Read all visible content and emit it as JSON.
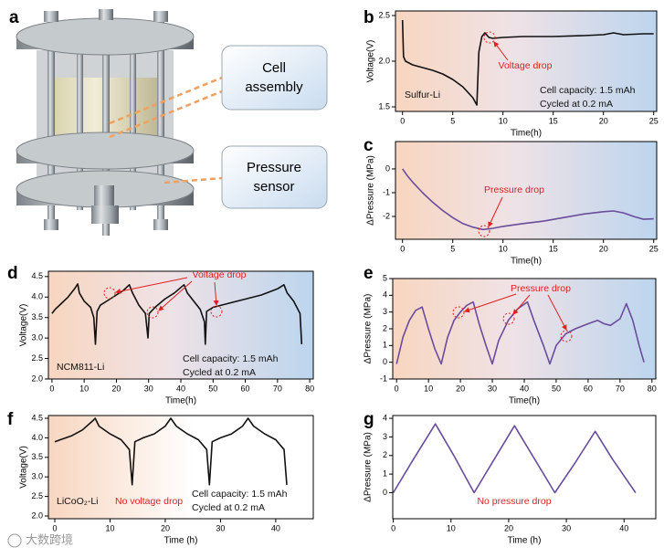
{
  "panel_labels": [
    "a",
    "b",
    "c",
    "d",
    "e",
    "f",
    "g"
  ],
  "illustration": {
    "cell_box": [
      "Cell",
      "assembly"
    ],
    "sensor_box": [
      "Pressure",
      "sensor"
    ]
  },
  "watermark": "大数跨境",
  "chart_data": [
    {
      "type": "line",
      "x_label": "Time(h)",
      "y_label": "Voltage(V)",
      "x": [
        0,
        0.1,
        0.3,
        1,
        2,
        3,
        4,
        5,
        6,
        7,
        7.4,
        7.6,
        7.9,
        8.2,
        8.6,
        9,
        10,
        12,
        15,
        18,
        20,
        21,
        22,
        24,
        25
      ],
      "series": [
        {
          "color": "#111111",
          "values": [
            2.45,
            2.05,
            2.0,
            1.96,
            1.93,
            1.9,
            1.86,
            1.8,
            1.72,
            1.6,
            1.52,
            2.1,
            2.27,
            2.31,
            2.26,
            2.25,
            2.26,
            2.27,
            2.27,
            2.28,
            2.29,
            2.31,
            2.29,
            2.3,
            2.3
          ]
        }
      ],
      "xlim": [
        -0.7,
        25.3
      ],
      "ylim": [
        1.45,
        2.55
      ],
      "xticks": [
        0,
        5,
        10,
        15,
        20,
        25
      ],
      "yticks": [
        1.5,
        {
          "value": 2,
          "label": "2.0"
        },
        2.5
      ],
      "annotations": [
        "Voltage drop",
        "Sulfur-Li",
        "Cell capacity: 1.5 mAh",
        "Cycled at 0.2 mA"
      ]
    },
    {
      "type": "line",
      "x_label": "Time(h)",
      "y_label": "ΔPressure (MPa)",
      "x": [
        0,
        0.5,
        1,
        2,
        3,
        4,
        5,
        6,
        7,
        8,
        9,
        10,
        12,
        14,
        16,
        18,
        20,
        21,
        22,
        23,
        24,
        25
      ],
      "series": [
        {
          "color": "#6a4c9c",
          "values": [
            0,
            -0.3,
            -0.55,
            -1,
            -1.4,
            -1.75,
            -2.05,
            -2.3,
            -2.45,
            -2.55,
            -2.5,
            -2.42,
            -2.3,
            -2.2,
            -2.05,
            -1.9,
            -1.8,
            -1.77,
            -1.85,
            -2,
            -2.12,
            -2.1
          ]
        }
      ],
      "xlim": [
        -0.7,
        25.3
      ],
      "ylim": [
        -2.96,
        1.15
      ],
      "xticks": [
        0,
        5,
        10,
        15,
        20,
        25
      ],
      "yticks": [
        -2,
        -1,
        0
      ],
      "annotations": [
        "Pressure drop"
      ]
    },
    {
      "type": "line",
      "x_label": "Time(h)",
      "y_label": "Voltage(V)",
      "x": [
        0,
        1,
        3,
        5,
        7,
        8,
        8.5,
        10,
        12,
        13,
        13.5,
        14,
        15,
        18,
        20,
        22,
        24,
        25,
        27,
        29,
        29.8,
        30.2,
        32,
        35,
        38,
        41,
        42,
        44,
        46,
        47.3,
        47.6,
        48,
        50,
        55,
        60,
        65,
        70,
        72,
        73,
        75,
        77,
        77.5
      ],
      "series": [
        {
          "color": "#111111",
          "values": [
            3.6,
            3.7,
            3.85,
            4.0,
            4.2,
            4.32,
            4.1,
            3.9,
            3.75,
            3.5,
            2.85,
            3.65,
            3.8,
            3.95,
            4.05,
            4.15,
            4.3,
            4.1,
            3.8,
            3.6,
            3.0,
            3.6,
            3.75,
            3.95,
            4.1,
            4.3,
            4.1,
            3.9,
            3.7,
            3.4,
            2.85,
            3.65,
            3.75,
            3.85,
            3.95,
            4.05,
            4.2,
            4.3,
            4.1,
            3.9,
            3.6,
            2.85
          ]
        }
      ],
      "xlim": [
        -1.1,
        81.1
      ],
      "ylim": [
        2.0,
        4.63
      ],
      "xticks": [
        0,
        10,
        20,
        30,
        40,
        50,
        60,
        70,
        80
      ],
      "yticks": [
        {
          "value": 2,
          "label": "2.0"
        },
        2.5,
        {
          "value": 3,
          "label": "3.0"
        },
        3.5,
        {
          "value": 4,
          "label": "4.0"
        },
        4.5
      ],
      "annotations": [
        "Voltage drop",
        "NCM811-Li",
        "Cell capacity: 1.5 mAh",
        "Cycled at 0.2 mA"
      ]
    },
    {
      "type": "line",
      "x_label": "Time(h)",
      "y_label": "ΔPressure (MPa)",
      "x": [
        0,
        2,
        4,
        6,
        8,
        10,
        12,
        14,
        16,
        18,
        20,
        22,
        24,
        26,
        28,
        30,
        32,
        35,
        38,
        41,
        43,
        46,
        48,
        50,
        53,
        56,
        60,
        63,
        65,
        67,
        70,
        72,
        74,
        76,
        77.5
      ],
      "series": [
        {
          "color": "#6a4c9c",
          "values": [
            -0.1,
            1.5,
            2.5,
            3.1,
            3.3,
            2,
            0.8,
            -0.1,
            1.5,
            2.5,
            3,
            3.4,
            3.6,
            2.2,
            1,
            -0.1,
            1.3,
            2.5,
            3.2,
            3.6,
            2.5,
            1,
            -0.1,
            1,
            1.7,
            2,
            2.3,
            2.5,
            2.3,
            2.2,
            2.6,
            3.5,
            2.5,
            1,
            0
          ]
        }
      ],
      "xlim": [
        -1.2,
        81.2
      ],
      "ylim": [
        -1,
        5
      ],
      "xticks": [
        0,
        10,
        20,
        30,
        40,
        50,
        60,
        70,
        80
      ],
      "yticks": [
        -1,
        0,
        1,
        2,
        3,
        4,
        5
      ],
      "annotations": [
        "Pressure drop"
      ]
    },
    {
      "type": "line",
      "x_label": "Time (h)",
      "y_label": "Voltage(V)",
      "x": [
        0,
        1,
        3,
        5,
        7,
        7.3,
        8,
        10,
        12,
        13.5,
        14,
        14.5,
        16,
        18,
        20,
        21,
        22,
        24,
        26,
        27.5,
        28,
        28.5,
        30,
        32,
        34,
        35,
        36,
        38,
        40,
        41.5,
        42
      ],
      "series": [
        {
          "color": "#111111",
          "values": [
            3.9,
            3.95,
            4.05,
            4.2,
            4.45,
            4.5,
            4.3,
            4.1,
            3.95,
            3.7,
            2.8,
            3.9,
            4.0,
            4.1,
            4.3,
            4.5,
            4.3,
            4.1,
            3.95,
            3.7,
            2.8,
            3.9,
            4.0,
            4.1,
            4.3,
            4.5,
            4.3,
            4.1,
            3.95,
            3.7,
            2.8
          ]
        }
      ],
      "xlim": [
        -1.16,
        46.8
      ],
      "ylim": [
        1.93,
        4.57
      ],
      "xticks": [
        0,
        10,
        20,
        30,
        40
      ],
      "yticks": [
        {
          "value": 2,
          "label": "2.0"
        },
        2.5,
        {
          "value": 3,
          "label": "3.0"
        },
        3.5,
        {
          "value": 4,
          "label": "4.0"
        },
        4.5
      ],
      "annotations": [
        "LiCoO₂-Li",
        "No voltage drop",
        "Cell capacity: 1.5 mAh",
        "Cycled at 0.2 mA"
      ]
    },
    {
      "type": "line",
      "x_label": "Time (h)",
      "y_label": "ΔPressure (MPa)",
      "x": [
        0,
        3.5,
        7.3,
        10.5,
        14,
        17.5,
        21,
        24.5,
        28,
        31.5,
        35,
        38,
        42
      ],
      "series": [
        {
          "color": "#6a4c9c",
          "values": [
            0,
            1.8,
            3.7,
            2,
            0,
            1.8,
            3.6,
            1.8,
            0,
            1.6,
            3.3,
            1.8,
            0
          ]
        }
      ],
      "xlim": [
        -0.1,
        45.5
      ],
      "ylim": [
        -1.4,
        4.15
      ],
      "xticks": [
        0,
        10,
        20,
        30,
        40
      ],
      "yticks": [
        0,
        1,
        2,
        3,
        4
      ],
      "annotations": [
        "No pressure drop"
      ]
    }
  ]
}
